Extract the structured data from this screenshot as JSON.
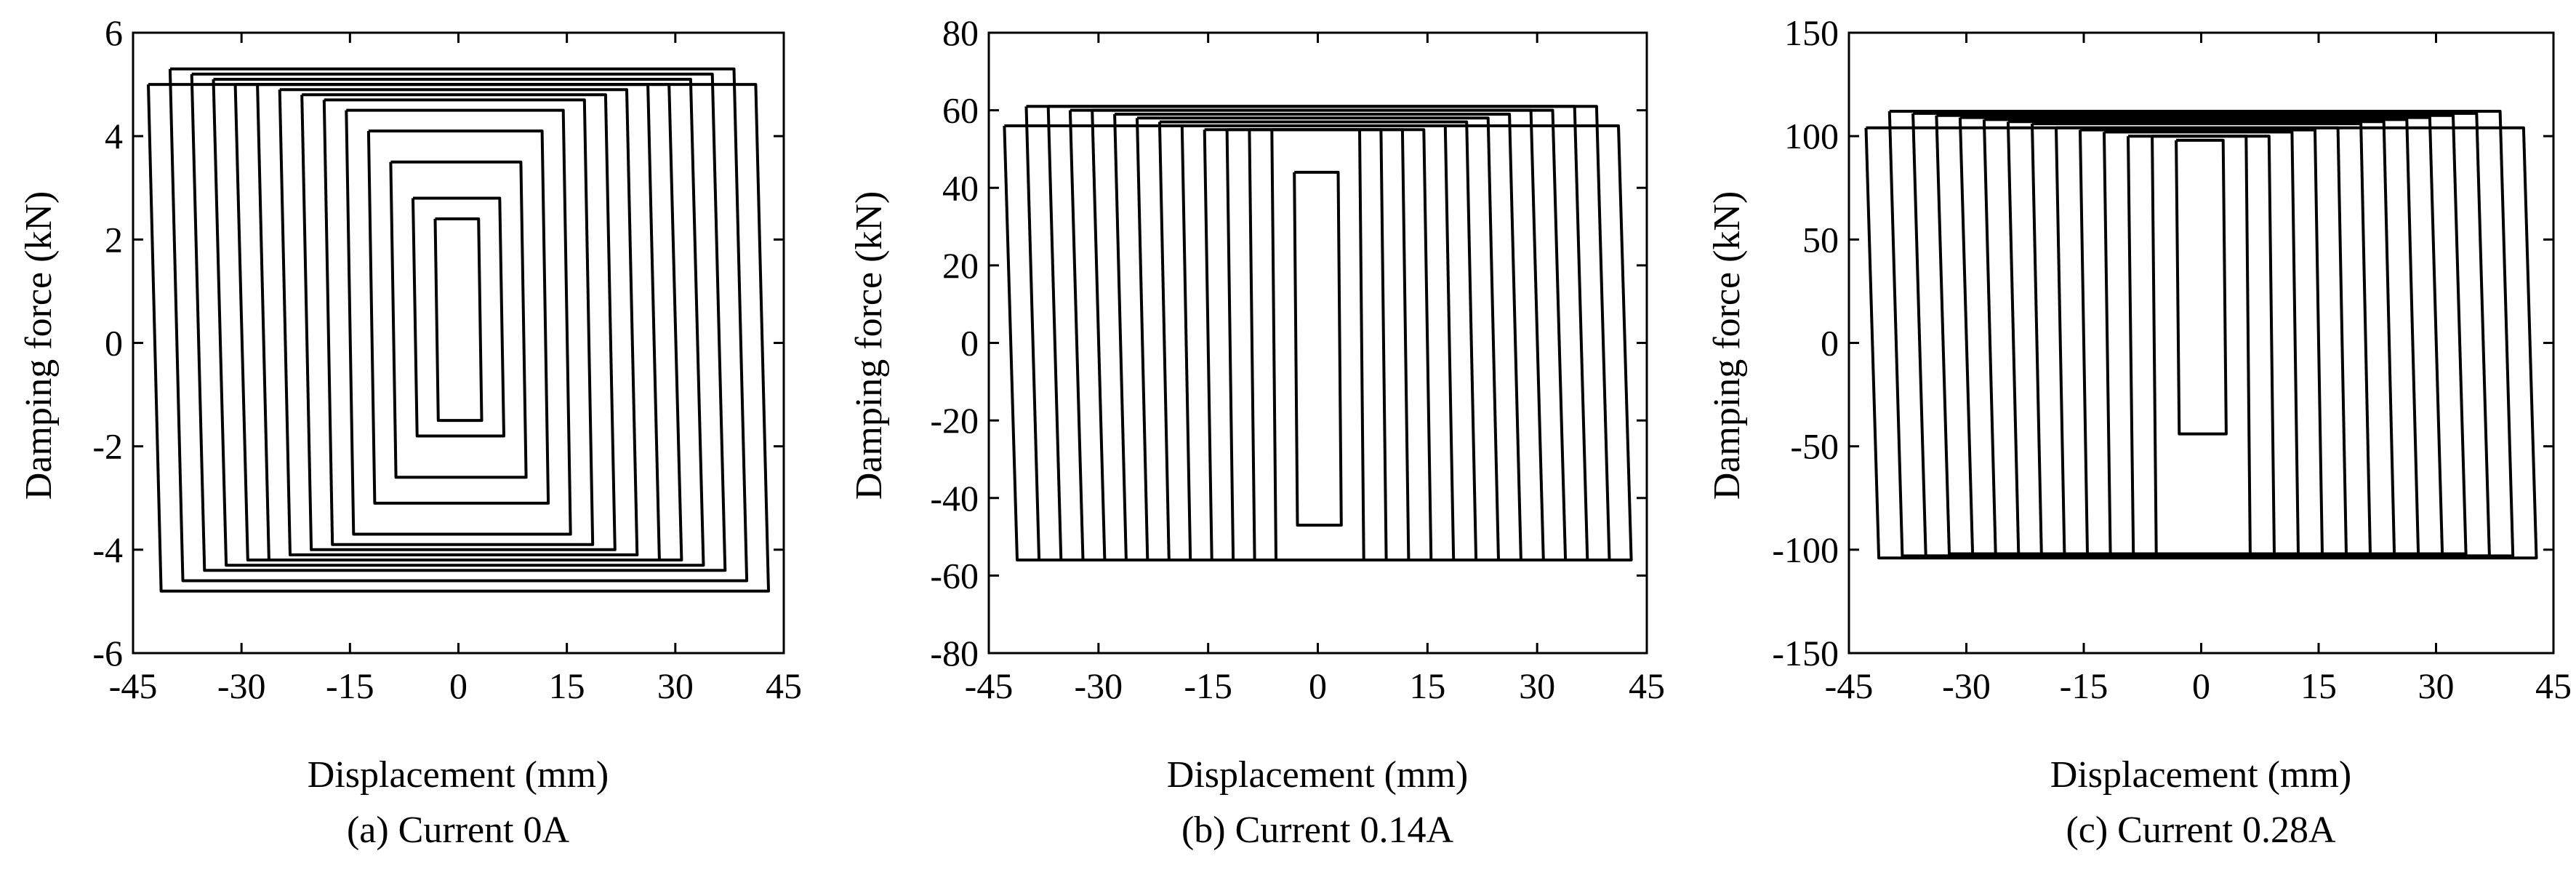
{
  "chart_data": [
    {
      "type": "line",
      "caption": "(a) Current 0A",
      "xlabel": "Displacement (mm)",
      "ylabel": "Damping force (kN)",
      "xlim": [
        -45,
        45
      ],
      "ylim": [
        -6,
        6
      ],
      "xticks": [
        -45,
        -30,
        -15,
        0,
        15,
        30,
        45
      ],
      "yticks": [
        -6,
        -4,
        -2,
        0,
        2,
        4,
        6
      ],
      "grid": false,
      "amplitudes": [
        3,
        6,
        9,
        12,
        15,
        18,
        21,
        24,
        27,
        30,
        33,
        36,
        39,
        42
      ],
      "series": [
        {
          "amplitude": 3,
          "x": [
            -3,
            3,
            3,
            -3,
            -3
          ],
          "y": [
            2.4,
            2.4,
            -1.5,
            -1.5,
            2.4
          ]
        },
        {
          "amplitude": 6,
          "x": [
            -6,
            6,
            6,
            -6,
            -6
          ],
          "y": [
            2.8,
            2.8,
            -1.8,
            -1.8,
            2.8
          ]
        },
        {
          "amplitude": 9,
          "x": [
            -9,
            9,
            9,
            -9,
            -9
          ],
          "y": [
            3.5,
            3.5,
            -2.6,
            -2.6,
            3.5
          ]
        },
        {
          "amplitude": 12,
          "x": [
            -12,
            12,
            12,
            -12,
            -12
          ],
          "y": [
            4.1,
            4.1,
            -3.1,
            -3.1,
            4.1
          ]
        },
        {
          "amplitude": 15,
          "x": [
            -15,
            15,
            15,
            -15,
            -15
          ],
          "y": [
            4.5,
            4.5,
            -3.7,
            -3.7,
            4.5
          ]
        },
        {
          "amplitude": 18,
          "x": [
            -18,
            18,
            18,
            -18,
            -18
          ],
          "y": [
            4.7,
            4.7,
            -3.9,
            -3.9,
            4.7
          ]
        },
        {
          "amplitude": 21,
          "x": [
            -21,
            21,
            21,
            -21,
            -21
          ],
          "y": [
            4.8,
            4.8,
            -4.0,
            -4.0,
            4.8
          ]
        },
        {
          "amplitude": 24,
          "x": [
            -24,
            24,
            24,
            -24,
            -24
          ],
          "y": [
            4.9,
            4.9,
            -4.1,
            -4.1,
            4.9
          ]
        },
        {
          "amplitude": 27,
          "x": [
            -27,
            27,
            27,
            -27,
            -27
          ],
          "y": [
            5.0,
            5.0,
            -4.2,
            -4.2,
            5.0
          ]
        },
        {
          "amplitude": 30,
          "x": [
            -30,
            30,
            30,
            -30,
            -30
          ],
          "y": [
            5.0,
            5.0,
            -4.2,
            -4.2,
            5.0
          ]
        },
        {
          "amplitude": 33,
          "x": [
            -33,
            33,
            33,
            -33,
            -33
          ],
          "y": [
            5.1,
            5.1,
            -4.3,
            -4.3,
            5.1
          ]
        },
        {
          "amplitude": 36,
          "x": [
            -36,
            36,
            36,
            -36,
            -36
          ],
          "y": [
            5.2,
            5.2,
            -4.4,
            -4.4,
            5.2
          ]
        },
        {
          "amplitude": 39,
          "x": [
            -39,
            39,
            39,
            -39,
            -39
          ],
          "y": [
            5.3,
            5.3,
            -4.6,
            -4.6,
            5.3
          ]
        },
        {
          "amplitude": 42,
          "x": [
            -42,
            42,
            42,
            -42,
            -42
          ],
          "y": [
            5.0,
            5.0,
            -4.8,
            -4.8,
            5.0
          ]
        }
      ]
    },
    {
      "type": "line",
      "caption": "(b) Current 0.14A",
      "xlabel": "Displacement (mm)",
      "ylabel": "Damping force (kN)",
      "xlim": [
        -45,
        45
      ],
      "ylim": [
        -80,
        80
      ],
      "xticks": [
        -45,
        -30,
        -15,
        0,
        15,
        30,
        45
      ],
      "yticks": [
        -80,
        -60,
        -40,
        -20,
        0,
        20,
        40,
        60,
        80
      ],
      "grid": false,
      "amplitudes": [
        3,
        6,
        9,
        12,
        15,
        18,
        21,
        24,
        27,
        30,
        33,
        36,
        39,
        42
      ],
      "series": [
        {
          "amplitude": 3,
          "x": [
            -3,
            3,
            3,
            -3,
            -3
          ],
          "y": [
            44,
            44,
            -47,
            -47,
            44
          ]
        },
        {
          "amplitude": 6,
          "x": [
            -6,
            6,
            6,
            -6,
            -6
          ],
          "y": [
            55,
            55,
            -56,
            -56,
            55
          ]
        },
        {
          "amplitude": 9,
          "x": [
            -9,
            9,
            9,
            -9,
            -9
          ],
          "y": [
            55,
            55,
            -56,
            -56,
            55
          ]
        },
        {
          "amplitude": 12,
          "x": [
            -12,
            12,
            12,
            -12,
            -12
          ],
          "y": [
            55,
            55,
            -56,
            -56,
            55
          ]
        },
        {
          "amplitude": 15,
          "x": [
            -15,
            15,
            15,
            -15,
            -15
          ],
          "y": [
            55,
            55,
            -56,
            -56,
            55
          ]
        },
        {
          "amplitude": 18,
          "x": [
            -18,
            18,
            18,
            -18,
            -18
          ],
          "y": [
            56,
            56,
            -56,
            -56,
            56
          ]
        },
        {
          "amplitude": 21,
          "x": [
            -21,
            21,
            21,
            -21,
            -21
          ],
          "y": [
            57,
            57,
            -56,
            -56,
            57
          ]
        },
        {
          "amplitude": 24,
          "x": [
            -24,
            24,
            24,
            -24,
            -24
          ],
          "y": [
            58,
            58,
            -56,
            -56,
            58
          ]
        },
        {
          "amplitude": 27,
          "x": [
            -27,
            27,
            27,
            -27,
            -27
          ],
          "y": [
            59,
            59,
            -56,
            -56,
            59
          ]
        },
        {
          "amplitude": 30,
          "x": [
            -30,
            30,
            30,
            -30,
            -30
          ],
          "y": [
            60,
            60,
            -56,
            -56,
            60
          ]
        },
        {
          "amplitude": 33,
          "x": [
            -33,
            33,
            33,
            -33,
            -33
          ],
          "y": [
            60,
            60,
            -56,
            -56,
            60
          ]
        },
        {
          "amplitude": 36,
          "x": [
            -36,
            36,
            36,
            -36,
            -36
          ],
          "y": [
            61,
            61,
            -56,
            -56,
            61
          ]
        },
        {
          "amplitude": 39,
          "x": [
            -39,
            39,
            39,
            -39,
            -39
          ],
          "y": [
            61,
            61,
            -56,
            -56,
            61
          ]
        },
        {
          "amplitude": 42,
          "x": [
            -42,
            42,
            42,
            -42,
            -42
          ],
          "y": [
            56,
            56,
            -56,
            -56,
            56
          ]
        }
      ]
    },
    {
      "type": "line",
      "caption": "(c) Current 0.28A",
      "xlabel": "Displacement (mm)",
      "ylabel": "Damping force (kN)",
      "xlim": [
        -45,
        45
      ],
      "ylim": [
        -150,
        150
      ],
      "xticks": [
        -45,
        -30,
        -15,
        0,
        15,
        30,
        45
      ],
      "yticks": [
        -150,
        -100,
        -50,
        0,
        50,
        100,
        150
      ],
      "grid": false,
      "amplitudes": [
        3,
        6,
        9,
        12,
        15,
        18,
        21,
        24,
        27,
        30,
        33,
        36,
        39,
        42
      ],
      "series": [
        {
          "amplitude": 3,
          "x": [
            -3,
            3,
            3,
            -3,
            -3
          ],
          "y": [
            98,
            98,
            -44,
            -44,
            98
          ]
        },
        {
          "amplitude": 6,
          "x": [
            -6,
            6,
            6,
            -6,
            -6
          ],
          "y": [
            100,
            100,
            -102,
            -102,
            100
          ]
        },
        {
          "amplitude": 9,
          "x": [
            -9,
            9,
            9,
            -9,
            -9
          ],
          "y": [
            100,
            100,
            -102,
            -102,
            100
          ]
        },
        {
          "amplitude": 12,
          "x": [
            -12,
            12,
            12,
            -12,
            -12
          ],
          "y": [
            102,
            102,
            -102,
            -102,
            102
          ]
        },
        {
          "amplitude": 15,
          "x": [
            -15,
            15,
            15,
            -15,
            -15
          ],
          "y": [
            103,
            103,
            -102,
            -102,
            103
          ]
        },
        {
          "amplitude": 18,
          "x": [
            -18,
            18,
            18,
            -18,
            -18
          ],
          "y": [
            104,
            104,
            -102,
            -102,
            104
          ]
        },
        {
          "amplitude": 21,
          "x": [
            -21,
            21,
            21,
            -21,
            -21
          ],
          "y": [
            106,
            106,
            -102,
            -102,
            106
          ]
        },
        {
          "amplitude": 24,
          "x": [
            -24,
            24,
            24,
            -24,
            -24
          ],
          "y": [
            107,
            107,
            -102,
            -102,
            107
          ]
        },
        {
          "amplitude": 27,
          "x": [
            -27,
            27,
            27,
            -27,
            -27
          ],
          "y": [
            108,
            108,
            -102,
            -102,
            108
          ]
        },
        {
          "amplitude": 30,
          "x": [
            -30,
            30,
            30,
            -30,
            -30
          ],
          "y": [
            109,
            109,
            -102,
            -102,
            109
          ]
        },
        {
          "amplitude": 33,
          "x": [
            -33,
            33,
            33,
            -33,
            -33
          ],
          "y": [
            110,
            110,
            -102,
            -102,
            110
          ]
        },
        {
          "amplitude": 36,
          "x": [
            -36,
            36,
            36,
            -36,
            -36
          ],
          "y": [
            111,
            111,
            -103,
            -103,
            111
          ]
        },
        {
          "amplitude": 39,
          "x": [
            -39,
            39,
            39,
            -39,
            -39
          ],
          "y": [
            112,
            112,
            -103,
            -103,
            112
          ]
        },
        {
          "amplitude": 42,
          "x": [
            -42,
            42,
            42,
            -42,
            -42
          ],
          "y": [
            104,
            104,
            -104,
            -104,
            104
          ]
        }
      ]
    }
  ]
}
